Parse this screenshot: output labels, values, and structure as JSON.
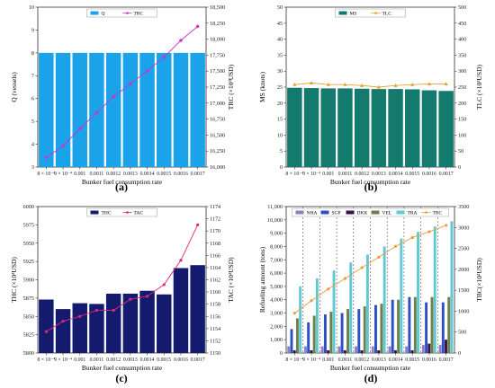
{
  "figure": {
    "panel_letters": [
      "(a)",
      "(b)",
      "(c)",
      "(d)"
    ]
  },
  "colors": {
    "q_bar": "#1aa3e8",
    "trc_line": "#cc33cc",
    "ms_bar": "#137a6d",
    "tlc_line": "#e8a033",
    "thc_bar": "#141b6e",
    "tac_line": "#e0287a",
    "nha": "#8a7fc9",
    "sgp": "#2e4fc4",
    "dkk": "#3a0f4a",
    "vel": "#6f7f4a",
    "tra": "#5fc9d6",
    "tbc": "#f09a3a"
  },
  "chart_data": [
    {
      "id": "a",
      "type": "bar",
      "categories": [
        "8 × 10⁻⁴",
        "9 × 10⁻⁴",
        "0.001",
        "0.0011",
        "0.0012",
        "0.0013",
        "0.0014",
        "0.0015",
        "0.0016",
        "0.0017"
      ],
      "series": [
        {
          "name": "Q",
          "type": "bar",
          "axis": "left",
          "values": [
            8,
            8,
            8,
            8,
            8,
            8,
            8,
            8,
            8,
            8
          ]
        },
        {
          "name": "TRC",
          "type": "line",
          "axis": "right",
          "values": [
            16150,
            16330,
            16600,
            16850,
            17100,
            17300,
            17500,
            17720,
            17980,
            18200
          ]
        }
      ],
      "xlabel": "Bunker fuel consumption rate",
      "ylabel": "Q (vessels)",
      "y2label": "TRC (×10³USD)",
      "ylim": [
        3,
        10
      ],
      "y2lim": [
        16000,
        18500
      ],
      "yticks": [
        "3",
        "4",
        "5",
        "6",
        "7",
        "8",
        "9",
        "10"
      ],
      "y2ticks": [
        "16,000",
        "16,250",
        "16,500",
        "16,750",
        "17,000",
        "17,250",
        "17,500",
        "17,750",
        "18,000",
        "18,250",
        "18,500"
      ],
      "legend": "top-center"
    },
    {
      "id": "b",
      "type": "bar",
      "categories": [
        "8 × 10⁻⁴",
        "9 × 10⁻⁴",
        "0.001",
        "0.0011",
        "0.0012",
        "0.0013",
        "0.0014",
        "0.0015",
        "0.0016",
        "0.0017"
      ],
      "series": [
        {
          "name": "MS",
          "type": "bar",
          "axis": "left",
          "values": [
            24.8,
            24.7,
            24.6,
            24.6,
            24.5,
            24.4,
            24.4,
            24.3,
            24.0,
            23.8
          ]
        },
        {
          "name": "TLC",
          "type": "line",
          "axis": "right",
          "values": [
            258,
            263,
            258,
            258,
            255,
            250,
            255,
            258,
            260,
            260
          ]
        }
      ],
      "xlabel": "Bunker fuel consumption rate",
      "ylabel": "MS (knots)",
      "y2label": "TLC (×10³USD)",
      "ylim": [
        0,
        50
      ],
      "y2lim": [
        0,
        500
      ],
      "yticks": [
        "0",
        "5",
        "10",
        "15",
        "20",
        "25",
        "30",
        "35",
        "40",
        "45",
        "50"
      ],
      "y2ticks": [
        "0",
        "50",
        "100",
        "150",
        "200",
        "250",
        "300",
        "350",
        "400",
        "450",
        "500"
      ],
      "legend": "top-center"
    },
    {
      "id": "c",
      "type": "bar",
      "categories": [
        "8 × 10⁻⁴",
        "9 × 10⁻⁴",
        "0.001",
        "0.0011",
        "0.0012",
        "0.0013",
        "0.0014",
        "0.0015",
        "0.0016",
        "0.0017"
      ],
      "series": [
        {
          "name": "THC",
          "type": "bar",
          "axis": "left",
          "values": [
            5873,
            5860,
            5868,
            5867,
            5881,
            5881,
            5885,
            5880,
            5916,
            5920
          ]
        },
        {
          "name": "TAC",
          "type": "line",
          "axis": "right",
          "values": [
            1153.5,
            1155.2,
            1156.0,
            1157.0,
            1157.0,
            1158.8,
            1159.3,
            1161.2,
            1165.2,
            1171.0
          ]
        }
      ],
      "xlabel": "Bunker fuel consumption rate",
      "ylabel": "THC (×10³USD)",
      "y2label": "TAC (×10³USD)",
      "ylim": [
        5800,
        6000
      ],
      "y2lim": [
        1150,
        1174
      ],
      "yticks": [
        "5800",
        "5825",
        "5850",
        "5875",
        "5900",
        "5925",
        "5950",
        "5975",
        "6000"
      ],
      "y2ticks": [
        "1150",
        "1152",
        "1154",
        "1156",
        "1158",
        "1160",
        "1162",
        "1164",
        "1166",
        "1168",
        "1170",
        "1172",
        "1174"
      ],
      "legend": "top-center"
    },
    {
      "id": "d",
      "type": "bar",
      "categories": [
        "8 × 10⁻⁴",
        "9 × 10⁻⁴",
        "0.001",
        "0.0011",
        "0.0012",
        "0.0013",
        "0.0014",
        "0.0015",
        "0.0016",
        "0.0017"
      ],
      "series": [
        {
          "name": "NHA",
          "type": "bar",
          "axis": "left",
          "values": [
            500,
            500,
            500,
            500,
            500,
            500,
            500,
            500,
            600,
            600
          ]
        },
        {
          "name": "SGP",
          "type": "bar",
          "axis": "left",
          "values": [
            1800,
            2300,
            2900,
            3000,
            3300,
            3600,
            4000,
            4200,
            3800,
            3800
          ]
        },
        {
          "name": "DKK",
          "type": "bar",
          "axis": "left",
          "values": [
            200,
            200,
            200,
            200,
            200,
            200,
            200,
            200,
            700,
            1000
          ]
        },
        {
          "name": "VEL",
          "type": "bar",
          "axis": "left",
          "values": [
            2600,
            2800,
            3100,
            3300,
            3500,
            3700,
            4000,
            4200,
            4200,
            4200
          ]
        },
        {
          "name": "TRA",
          "type": "bar",
          "axis": "left",
          "values": [
            5000,
            5600,
            6200,
            6800,
            7400,
            8000,
            8600,
            9100,
            9500,
            9900
          ]
        },
        {
          "name": "TBC",
          "type": "line",
          "axis": "right",
          "values": [
            950,
            1250,
            1530,
            1780,
            2040,
            2290,
            2550,
            2760,
            2900,
            3050
          ]
        }
      ],
      "xlabel": "Bunker fuel consumption rate",
      "ylabel": "Refueling amount (tons)",
      "y2label": "TBC(×10³USD)",
      "ylim": [
        0,
        11000
      ],
      "y2lim": [
        0,
        3500
      ],
      "yticks": [
        "0",
        "1,000",
        "2,000",
        "3,000",
        "4,000",
        "5,000",
        "6,000",
        "7,000",
        "8,000",
        "9,000",
        "10,000",
        "11,000"
      ],
      "y2ticks": [
        "0",
        "500",
        "1000",
        "1500",
        "2000",
        "2500",
        "3000",
        "3500"
      ],
      "legend": "top-center"
    }
  ]
}
